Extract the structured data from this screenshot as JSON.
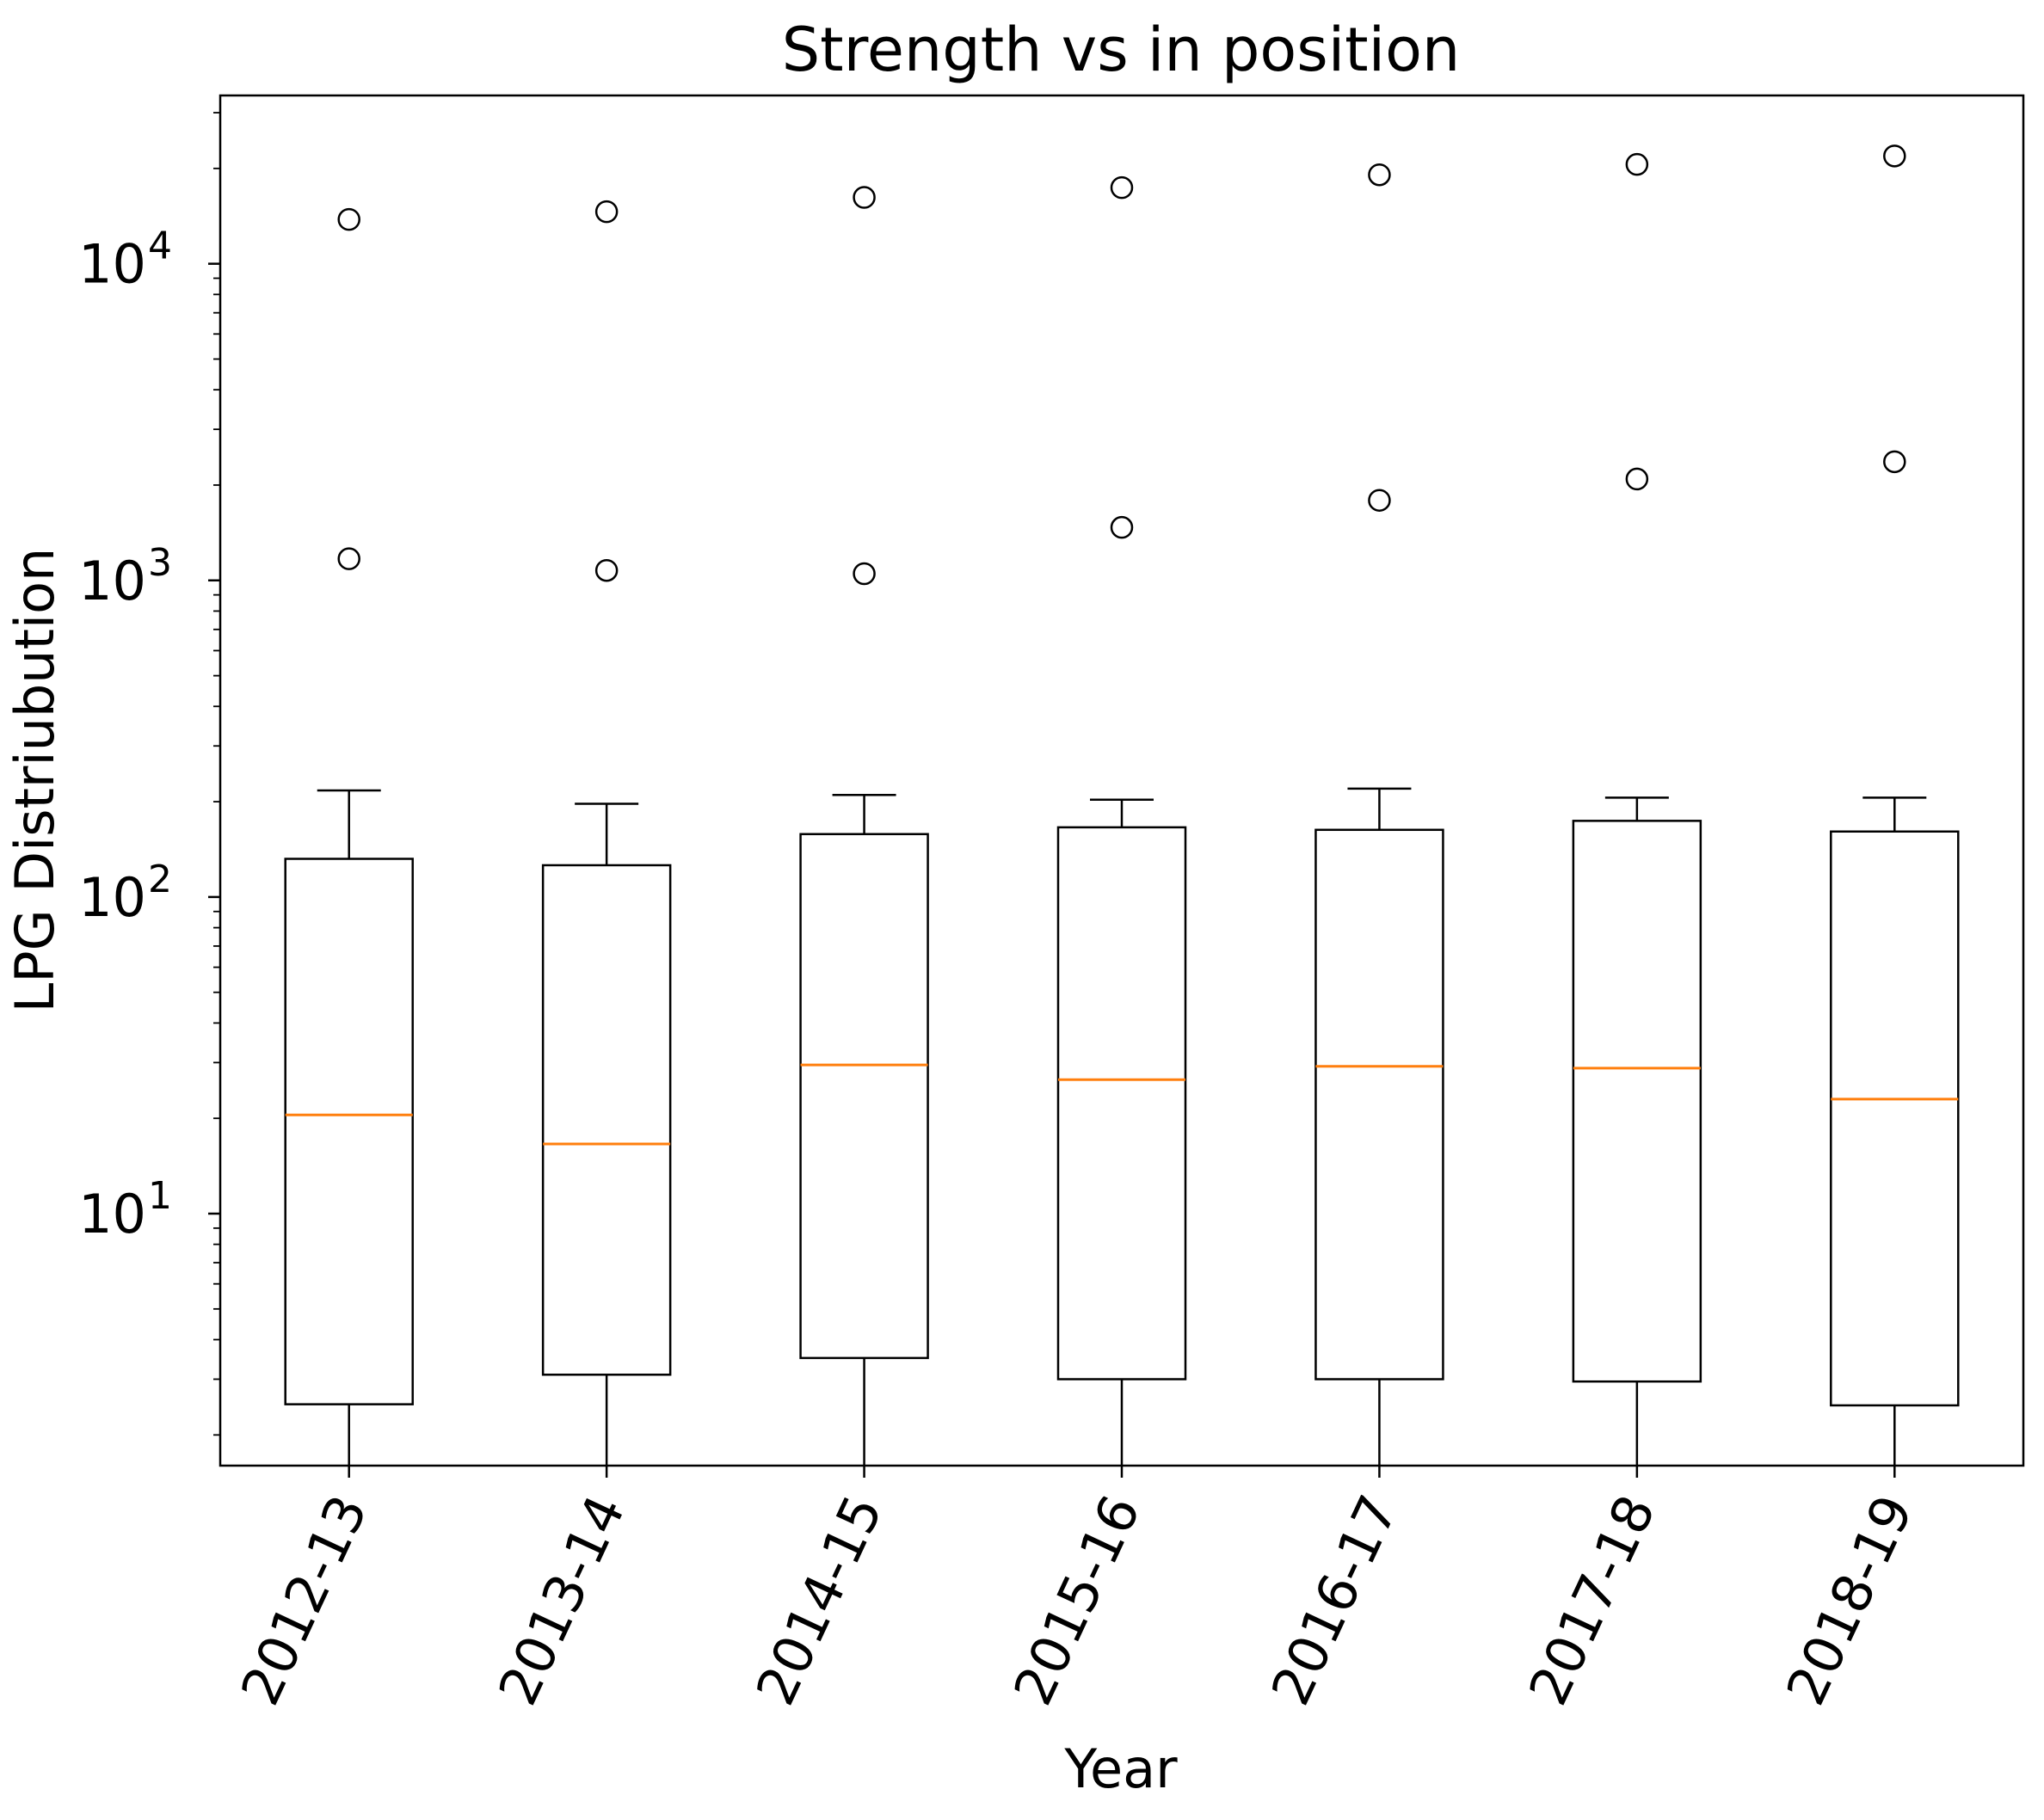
{
  "chart_data": {
    "type": "boxplot",
    "title": "Strength vs in position",
    "xlabel": "Year",
    "ylabel": "LPG Distriubution",
    "yscale": "log",
    "ylim": [
      1.6,
      34000
    ],
    "grid": false,
    "categories": [
      "2012-13",
      "2013-14",
      "2014-15",
      "2015-16",
      "2016-17",
      "2017-18",
      "2018-19"
    ],
    "boxes": [
      {
        "whisker_low": 1.5,
        "q1": 2.5,
        "median": 20.5,
        "q3": 132,
        "whisker_high": 217,
        "outliers": [
          1170,
          13800
        ]
      },
      {
        "whisker_low": 1.5,
        "q1": 3.1,
        "median": 16.6,
        "q3": 126,
        "whisker_high": 197,
        "outliers": [
          1075,
          14600
        ]
      },
      {
        "whisker_low": 1.5,
        "q1": 3.5,
        "median": 29.5,
        "q3": 158,
        "whisker_high": 210,
        "outliers": [
          1050,
          16200
        ]
      },
      {
        "whisker_low": 1.5,
        "q1": 3.0,
        "median": 26.5,
        "q3": 166,
        "whisker_high": 203,
        "outliers": [
          1470,
          17400
        ]
      },
      {
        "whisker_low": 1.5,
        "q1": 3.0,
        "median": 29.2,
        "q3": 163,
        "whisker_high": 220,
        "outliers": [
          1790,
          19100
        ]
      },
      {
        "whisker_low": 1.5,
        "q1": 2.95,
        "median": 28.8,
        "q3": 174,
        "whisker_high": 206,
        "outliers": [
          2090,
          20600
        ]
      },
      {
        "whisker_low": 1.5,
        "q1": 2.48,
        "median": 23.0,
        "q3": 161,
        "whisker_high": 206,
        "outliers": [
          2370,
          21900
        ]
      }
    ],
    "y_tick_labels": [
      {
        "value": 10,
        "base": "10",
        "exp": "1"
      },
      {
        "value": 100,
        "base": "10",
        "exp": "2"
      },
      {
        "value": 1000,
        "base": "10",
        "exp": "3"
      },
      {
        "value": 10000,
        "base": "10",
        "exp": "4"
      }
    ],
    "colors": {
      "box": "#000000",
      "median": "#ff7f0e",
      "outlier": "#000000"
    }
  }
}
